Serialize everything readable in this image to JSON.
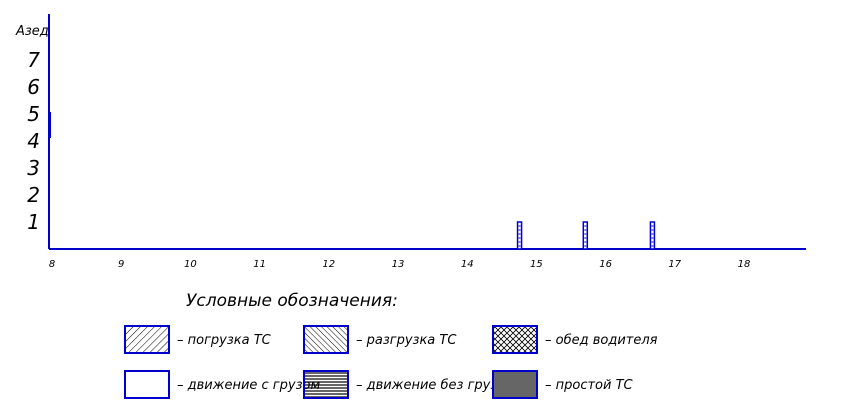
{
  "chart_data": {
    "type": "bar",
    "ylabel": "Aзед",
    "y_ticks": [
      "1",
      "2",
      "3",
      "4",
      "5",
      "6",
      "7"
    ],
    "x_ticks": [
      "8",
      "9",
      "10",
      "11",
      "12",
      "13",
      "14",
      "15",
      "16",
      "17",
      "18"
    ],
    "xlim": [
      8,
      19
    ],
    "ylim": [
      0,
      8
    ],
    "grid": false,
    "bars": [
      {
        "x": 14.8,
        "y_from": 0,
        "y_to": 1,
        "activity": "движение с грузом"
      },
      {
        "x": 15.75,
        "y_from": 0,
        "y_to": 1,
        "activity": "движение с грузом"
      },
      {
        "x": 16.72,
        "y_from": 0,
        "y_to": 1,
        "activity": "движение с грузом"
      }
    ],
    "legend": {
      "title": "Условные обозначения:",
      "items": [
        {
          "label": "– погрузка ТС",
          "pattern": "hatch-forward"
        },
        {
          "label": "– разгрузка ТС",
          "pattern": "hatch-back"
        },
        {
          "label": "– обед водителя",
          "pattern": "crosshatch"
        },
        {
          "label": "– движение с грузом",
          "pattern": "empty"
        },
        {
          "label": "– движение без груза",
          "pattern": "horizontal-lines"
        },
        {
          "label": "– простой ТС",
          "pattern": "solid-gray"
        }
      ]
    },
    "colors": {
      "axis": "#0000cc",
      "text": "#000000",
      "idle": "#666666"
    }
  }
}
